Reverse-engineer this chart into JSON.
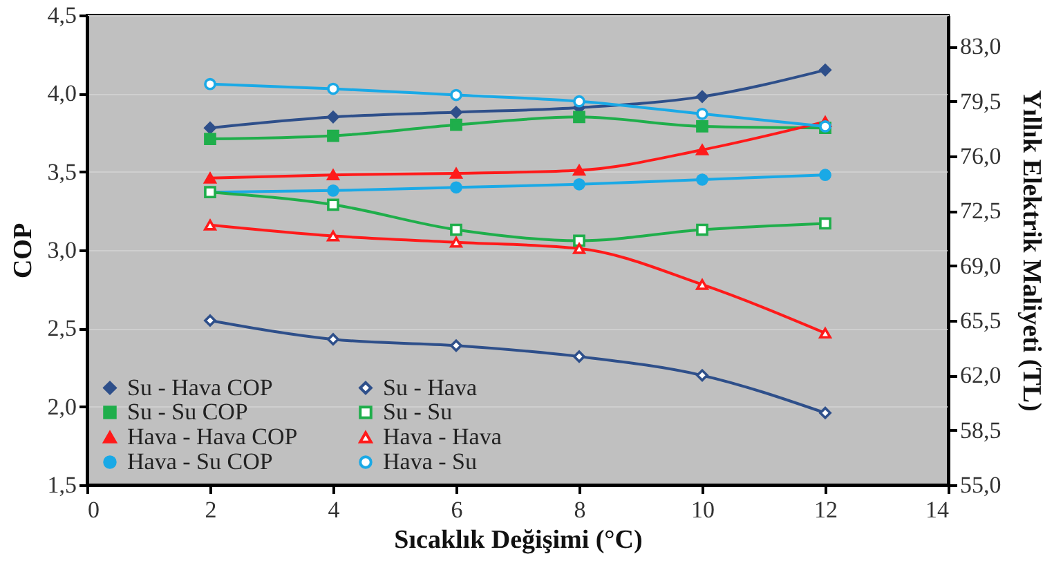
{
  "chart_data": {
    "type": "line",
    "xlabel": "Sıcaklık Değişimi (°C)",
    "ylabel": "COP",
    "y2label": "Yıllık Elektrik Maliyeti (TL)",
    "x": [
      2,
      4,
      6,
      8,
      10,
      12
    ],
    "xlim": [
      0,
      14
    ],
    "xticks": [
      0,
      2,
      4,
      6,
      8,
      10,
      12,
      14
    ],
    "ylim": [
      1.5,
      4.5
    ],
    "yticks": [
      {
        "value": 1.5,
        "label": "1,5"
      },
      {
        "value": 2,
        "label": "2,0"
      },
      {
        "value": 2.5,
        "label": "2,5"
      },
      {
        "value": 3,
        "label": "3,0"
      },
      {
        "value": 3.5,
        "label": "3,5"
      },
      {
        "value": 4,
        "label": "4,0"
      },
      {
        "value": 4.5,
        "label": "4,5"
      }
    ],
    "y2lim": [
      55,
      85
    ],
    "y2ticks": [
      {
        "value": 55,
        "label": "55,0"
      },
      {
        "value": 58.5,
        "label": "58,5"
      },
      {
        "value": 62,
        "label": "62,0"
      },
      {
        "value": 65.5,
        "label": "65,5"
      },
      {
        "value": 69,
        "label": "69,0"
      },
      {
        "value": 72.5,
        "label": "72,5"
      },
      {
        "value": 76,
        "label": "76,0"
      },
      {
        "value": 79.5,
        "label": "79,5"
      },
      {
        "value": 83,
        "label": "83,0"
      }
    ],
    "grid": "y",
    "legend": "bottom left",
    "series": [
      {
        "name": "Su - Hava COP",
        "color": "#2e4f8a",
        "marker": "diamond",
        "values": [
          3.78,
          3.85,
          3.88,
          3.91,
          3.98,
          4.15
        ]
      },
      {
        "name": "Su - Su COP",
        "color": "#1fae4b",
        "marker": "square",
        "values": [
          3.71,
          3.73,
          3.8,
          3.85,
          3.79,
          3.78
        ]
      },
      {
        "name": "Hava - Hava COP",
        "color": "#ff1a1a",
        "marker": "triangle",
        "values": [
          3.46,
          3.48,
          3.49,
          3.51,
          3.64,
          3.82
        ]
      },
      {
        "name": "Hava - Su COP",
        "color": "#1aa9e6",
        "marker": "circle",
        "values": [
          3.37,
          3.38,
          3.4,
          3.42,
          3.45,
          3.48
        ]
      },
      {
        "name": "Su - Hava",
        "color": "#2e4f8a",
        "marker": "diamond",
        "axis": "y2",
        "values": [
          65.5,
          64.3,
          63.9,
          63.2,
          62.0,
          59.6
        ]
      },
      {
        "name": "Su - Su",
        "color": "#1fae4b",
        "marker": "square",
        "axis": "y2",
        "values": [
          73.7,
          72.9,
          71.3,
          70.6,
          71.3,
          71.7
        ]
      },
      {
        "name": "Hava - Hava",
        "color": "#ff1a1a",
        "marker": "triangle",
        "axis": "y2",
        "values": [
          71.6,
          70.9,
          70.5,
          70.1,
          67.8,
          64.7
        ]
      },
      {
        "name": "Hava - Su",
        "color": "#1aa9e6",
        "marker": "circle",
        "axis": "y2",
        "values": [
          80.6,
          80.3,
          79.9,
          79.5,
          78.7,
          77.9
        ]
      }
    ]
  }
}
